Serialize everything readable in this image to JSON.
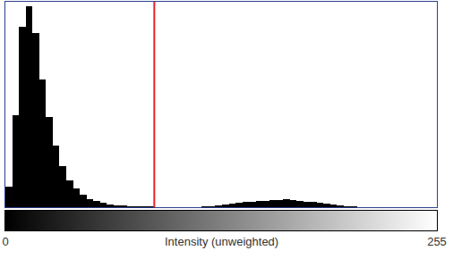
{
  "chart_data": {
    "type": "histogram",
    "x_label": "Intensity (unweighted)",
    "bins": [
      0,
      4,
      8,
      12,
      16,
      20,
      24,
      28,
      32,
      36,
      40,
      44,
      48,
      52,
      56,
      60,
      64,
      68,
      72,
      76,
      80,
      84,
      88,
      92,
      96,
      100,
      104,
      108,
      112,
      116,
      120,
      124,
      128,
      132,
      136,
      140,
      144,
      148,
      152,
      156,
      160,
      164,
      168,
      172,
      176,
      180,
      184,
      188,
      192,
      196,
      200,
      204,
      208,
      212,
      216,
      220,
      224,
      228,
      232,
      236,
      240,
      244,
      248,
      252,
      256
    ],
    "values": [
      10,
      45,
      88,
      98,
      85,
      62,
      44,
      30,
      20,
      13,
      9,
      6,
      4,
      3,
      2,
      1.5,
      1,
      0.8,
      0.6,
      0.5,
      0.4,
      0.3,
      0.2,
      0.1,
      0.1,
      0,
      0,
      0,
      0.1,
      0.3,
      0.6,
      0.9,
      1.2,
      1.6,
      2,
      2.4,
      2.7,
      3,
      3.2,
      3.4,
      3.6,
      3.7,
      3.5,
      3.2,
      2.8,
      2.4,
      2,
      1.6,
      1.2,
      0.9,
      0.6,
      0.4,
      0.2,
      0.1,
      0,
      0,
      0,
      0,
      0,
      0,
      0,
      0,
      0,
      0
    ],
    "color": "#000000",
    "xlim": [
      0,
      255
    ],
    "xticks": [
      0,
      255
    ],
    "ylim": [
      0,
      100
    ],
    "grid": false,
    "tick_labels": "x",
    "threshold": {
      "value": 88,
      "color": "#e8202a"
    }
  }
}
